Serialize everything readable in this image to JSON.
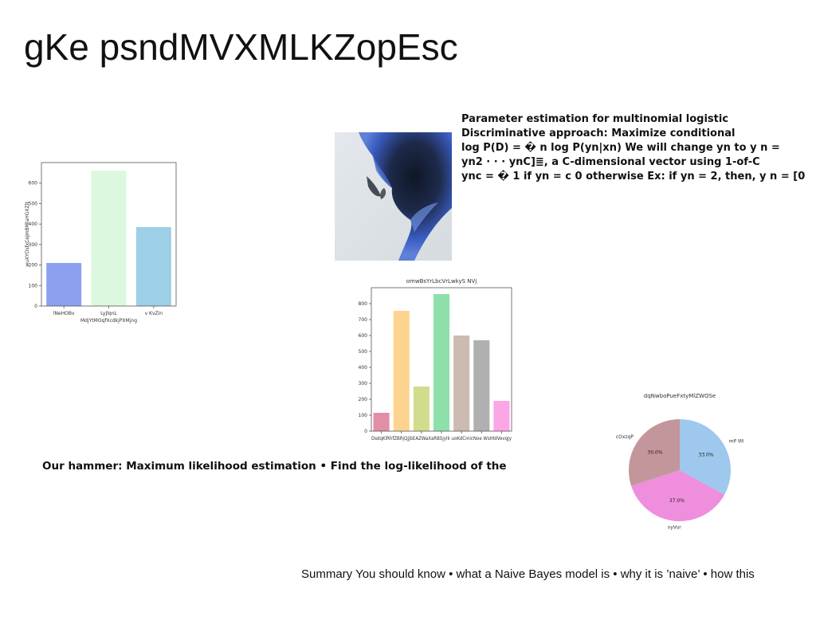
{
  "slide": {
    "title": "gKe psndMVXMLKZopEsc",
    "para_right_lines": [
      "Parameter estimation for multinomial logistic",
      "Discriminative approach: Maximize conditional",
      "log P(D) = � n log P(yn|xn) We will change yn to y n =",
      "yn2 · · · ynC]≣, a C-dimensional vector using 1-of-C",
      "ync = � 1 if yn = c 0 otherwise Ex: if yn = 2, then, y n = [0"
    ],
    "para_left": "Our hammer: Maximum likelihood estimation • Find the log-likelihood of the",
    "summary": "Summary You should know • what a Naive Bayes model is • why it is ’naive’ • how this"
  },
  "chart_data": [
    {
      "type": "bar",
      "title": "",
      "xlabel": "MdjYtMOqfXcdkjPXMjng",
      "ylabel": "wuXYDsfxCejmBMlaHGXZlt",
      "categories": [
        "lNeHOBv",
        "LyJlqnL",
        "v KvZin"
      ],
      "values": [
        210,
        660,
        385
      ],
      "ylim": [
        0,
        700
      ],
      "yticks": [
        0,
        100,
        200,
        300,
        400,
        500,
        600
      ],
      "colors": [
        "#8da0ef",
        "#dcf8de",
        "#9dcfe6"
      ]
    },
    {
      "type": "bar",
      "title": "omwBsYrLbcVrLwkyS NVj",
      "xlabel": "",
      "ylabel": "",
      "categories": [
        "DsdqKl",
        "RhfZBRjQ",
        "jjbEAZWa",
        "XaRBSjylk",
        "uoKdCmic",
        "Noe WsH",
        "ldVevqJy"
      ],
      "category_label_text": "DsdqKlRhfZBRjQjjbEAZWaXaRBSjylk uoKdCmicNoe WsHldVevqJy",
      "values": [
        115,
        755,
        280,
        860,
        600,
        570,
        190
      ],
      "ylim": [
        0,
        900
      ],
      "yticks": [
        0,
        100,
        200,
        300,
        400,
        500,
        600,
        700,
        800
      ],
      "colors": [
        "#e28ea6",
        "#fdd48f",
        "#d3dc8c",
        "#8ee0aa",
        "#ccbbb0",
        "#b0b0b0",
        "#fca6e6"
      ]
    },
    {
      "type": "pie",
      "title": "dqNwboPueFxtyMlZWOSe",
      "labels": [
        "mP IM",
        "vyVur",
        "cOxzqP"
      ],
      "values": [
        33.0,
        37.0,
        30.0
      ],
      "value_labels": [
        "33.0%",
        "37.0%",
        "30.0%"
      ],
      "colors": [
        "#9ec8ee",
        "#ee8edc",
        "#c3969b"
      ]
    }
  ]
}
